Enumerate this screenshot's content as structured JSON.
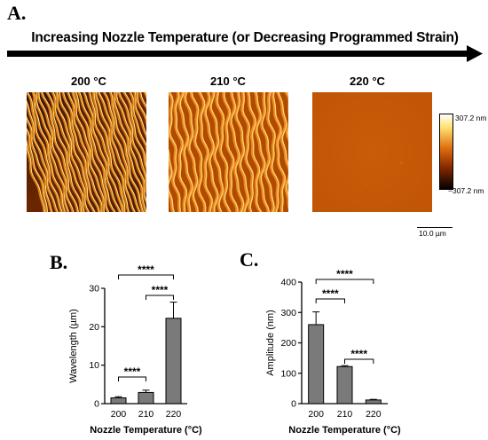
{
  "panel_a": {
    "letter": "A.",
    "arrow_caption": "Increasing Nozzle Temperature (or Decreasing Programmed Strain)",
    "images": [
      {
        "label": "200 °C"
      },
      {
        "label": "210 °C"
      },
      {
        "label": "220 °C"
      }
    ],
    "colorbar": {
      "max_label": "307.2 nm",
      "min_label": "−307.2 nm"
    },
    "scale_bar": "10.0 µm"
  },
  "chart_data": [
    {
      "type": "bar",
      "panel": "B.",
      "categories": [
        "200",
        "210",
        "220"
      ],
      "values": [
        1.5,
        2.9,
        22.2
      ],
      "errors": [
        0.3,
        0.6,
        4.2
      ],
      "xlabel": "Nozzle Temperature (°C)",
      "ylabel": "Wavelength (µm)",
      "ylim": [
        0,
        30
      ],
      "yticks": [
        0,
        10,
        20,
        30
      ],
      "significance": [
        {
          "from": "200",
          "to": "210",
          "label": "****"
        },
        {
          "from": "210",
          "to": "220",
          "label": "****"
        },
        {
          "from": "200",
          "to": "220",
          "label": "****"
        }
      ],
      "bar_color": "#7a7a7a"
    },
    {
      "type": "bar",
      "panel": "C.",
      "categories": [
        "200",
        "210",
        "220"
      ],
      "values": [
        260,
        122,
        12
      ],
      "errors": [
        42,
        3,
        2
      ],
      "xlabel": "Nozzle Temperature (°C)",
      "ylabel": "Amplitude (nm)",
      "ylim": [
        0,
        400
      ],
      "yticks": [
        0,
        100,
        200,
        300,
        400
      ],
      "significance": [
        {
          "from": "200",
          "to": "210",
          "label": "****"
        },
        {
          "from": "210",
          "to": "220",
          "label": "****"
        },
        {
          "from": "200",
          "to": "220",
          "label": "****"
        }
      ],
      "bar_color": "#7a7a7a"
    }
  ]
}
